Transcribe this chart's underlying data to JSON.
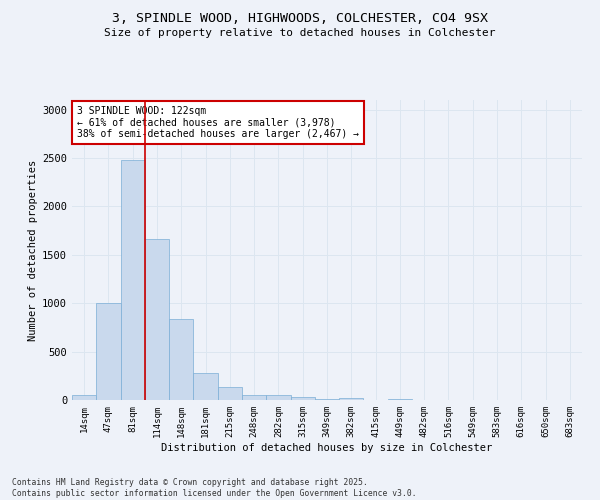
{
  "title1": "3, SPINDLE WOOD, HIGHWOODS, COLCHESTER, CO4 9SX",
  "title2": "Size of property relative to detached houses in Colchester",
  "xlabel": "Distribution of detached houses by size in Colchester",
  "ylabel": "Number of detached properties",
  "categories": [
    "14sqm",
    "47sqm",
    "81sqm",
    "114sqm",
    "148sqm",
    "181sqm",
    "215sqm",
    "248sqm",
    "282sqm",
    "315sqm",
    "349sqm",
    "382sqm",
    "415sqm",
    "449sqm",
    "482sqm",
    "516sqm",
    "549sqm",
    "583sqm",
    "616sqm",
    "650sqm",
    "683sqm"
  ],
  "values": [
    50,
    1000,
    2480,
    1660,
    840,
    280,
    130,
    55,
    50,
    35,
    15,
    20,
    0,
    15,
    0,
    0,
    0,
    0,
    0,
    0,
    0
  ],
  "bar_color": "#c9d9ed",
  "bar_edge_color": "#7aaed6",
  "grid_color": "#dce6f0",
  "vline_color": "#cc0000",
  "annotation_text": "3 SPINDLE WOOD: 122sqm\n← 61% of detached houses are smaller (3,978)\n38% of semi-detached houses are larger (2,467) →",
  "annotation_box_color": "#ffffff",
  "annotation_border_color": "#cc0000",
  "ylim": [
    0,
    3100
  ],
  "yticks": [
    0,
    500,
    1000,
    1500,
    2000,
    2500,
    3000
  ],
  "footer": "Contains HM Land Registry data © Crown copyright and database right 2025.\nContains public sector information licensed under the Open Government Licence v3.0.",
  "bg_color": "#eef2f9"
}
